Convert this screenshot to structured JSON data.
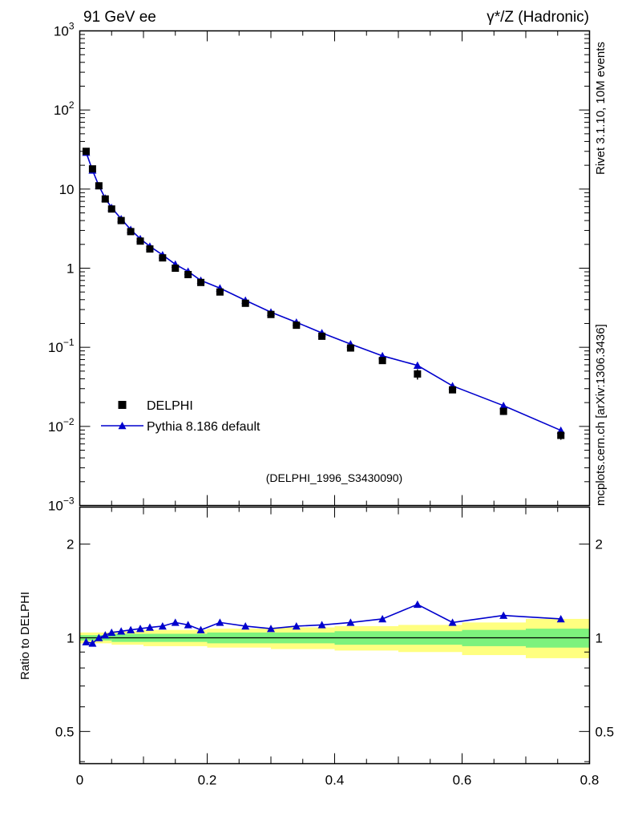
{
  "header": {
    "left": "91 GeV ee",
    "right": "γ*/Z (Hadronic)"
  },
  "side_texts": {
    "top": "Rivet 3.1.10, 10M events",
    "bottom": "mcplots.cern.ch [arXiv:1306.3436]"
  },
  "watermark": "(DELPHI_1996_S3430090)",
  "ratio": {
    "ylabel": "Ratio to DELPHI"
  },
  "legend": [
    {
      "label": "DELPHI",
      "marker": "square",
      "color": "#000000"
    },
    {
      "label": "Pythia 8.186 default",
      "marker": "triangle-line",
      "color": "#0000cd"
    }
  ],
  "colors": {
    "pythia_blue": "#0000cd",
    "data_black": "#000000",
    "band_green": "#7df27d",
    "band_yellow": "#ffff80",
    "watermark_gray": "#b4b4b4",
    "side_text_gray": "#808080"
  },
  "chart_data": [
    {
      "type": "scatter",
      "title": "91 GeV ee — γ*/Z (Hadronic)",
      "xlabel": "",
      "ylabel": "",
      "xlim": [
        0,
        0.8
      ],
      "xticks": [
        0,
        0.2,
        0.4,
        0.6,
        0.8
      ],
      "xtick_minor_step": 0.05,
      "ylog": true,
      "ylim": [
        0.001,
        1000
      ],
      "yticks_exp": [
        -3,
        -2,
        -1,
        0,
        1,
        2,
        3
      ],
      "grid": false,
      "legend_position": "inside-lower-left",
      "x": [
        0.01,
        0.02,
        0.03,
        0.04,
        0.05,
        0.065,
        0.08,
        0.095,
        0.11,
        0.13,
        0.15,
        0.17,
        0.19,
        0.22,
        0.26,
        0.3,
        0.34,
        0.38,
        0.425,
        0.475,
        0.53,
        0.585,
        0.665,
        0.755
      ],
      "series": [
        {
          "name": "DELPHI",
          "marker": "square",
          "color": "#000000",
          "values": [
            30,
            18,
            11,
            7.5,
            5.6,
            4.0,
            2.9,
            2.2,
            1.75,
            1.35,
            1.0,
            0.83,
            0.66,
            0.5,
            0.36,
            0.26,
            0.19,
            0.138,
            0.098,
            0.068,
            0.046,
            0.029,
            0.0155,
            0.0077
          ],
          "yerr_rel": [
            0.04,
            0.04,
            0.03,
            0.03,
            0.03,
            0.03,
            0.03,
            0.03,
            0.03,
            0.03,
            0.03,
            0.03,
            0.03,
            0.03,
            0.03,
            0.04,
            0.04,
            0.05,
            0.05,
            0.06,
            0.15,
            0.08,
            0.1,
            0.12
          ]
        },
        {
          "name": "Pythia 8.186 default",
          "marker": "triangle",
          "line": true,
          "color": "#0000cd",
          "values": [
            29.1,
            17.3,
            11.0,
            7.65,
            5.82,
            4.2,
            3.07,
            2.35,
            1.89,
            1.47,
            1.12,
            0.91,
            0.7,
            0.56,
            0.392,
            0.278,
            0.207,
            0.152,
            0.11,
            0.078,
            0.059,
            0.0325,
            0.0183,
            0.0089
          ]
        }
      ]
    },
    {
      "type": "line",
      "title": "Ratio to DELPHI",
      "ylog": true,
      "ylim": [
        0.394,
        2.63
      ],
      "yticks": [
        0.5,
        1,
        2
      ],
      "yticks_minor": [
        0.4,
        0.6,
        0.7,
        0.8,
        0.9
      ],
      "reference_line": 1,
      "x": [
        0.01,
        0.02,
        0.03,
        0.04,
        0.05,
        0.065,
        0.08,
        0.095,
        0.11,
        0.13,
        0.15,
        0.17,
        0.19,
        0.22,
        0.26,
        0.3,
        0.34,
        0.38,
        0.425,
        0.475,
        0.53,
        0.585,
        0.665,
        0.755
      ],
      "values": [
        0.97,
        0.96,
        1.0,
        1.02,
        1.04,
        1.05,
        1.06,
        1.07,
        1.08,
        1.09,
        1.12,
        1.1,
        1.06,
        1.12,
        1.09,
        1.07,
        1.09,
        1.1,
        1.12,
        1.15,
        1.28,
        1.12,
        1.18,
        1.15
      ],
      "band": {
        "edges": [
          0,
          0.05,
          0.1,
          0.2,
          0.3,
          0.4,
          0.5,
          0.6,
          0.7,
          0.8
        ],
        "green_lo": [
          0.98,
          0.97,
          0.97,
          0.96,
          0.96,
          0.95,
          0.95,
          0.94,
          0.93
        ],
        "green_hi": [
          1.02,
          1.03,
          1.03,
          1.04,
          1.04,
          1.05,
          1.05,
          1.06,
          1.07
        ],
        "yellow_lo": [
          0.96,
          0.95,
          0.94,
          0.93,
          0.92,
          0.91,
          0.9,
          0.88,
          0.86
        ],
        "yellow_hi": [
          1.04,
          1.05,
          1.06,
          1.07,
          1.08,
          1.09,
          1.1,
          1.12,
          1.15
        ]
      }
    }
  ]
}
